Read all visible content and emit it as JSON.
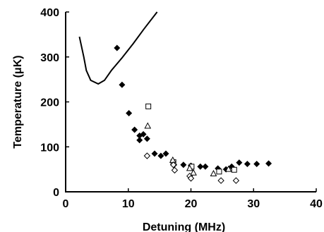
{
  "chart_data": {
    "type": "scatter",
    "title": "",
    "xlabel": "Detuning (MHz)",
    "ylabel": "Temperature  (μK)",
    "xlim": [
      0,
      40
    ],
    "ylim": [
      0,
      400
    ],
    "xticks": [
      0,
      10,
      20,
      30,
      40
    ],
    "yticks": [
      0,
      100,
      200,
      300,
      400
    ],
    "x_tick_labels": [
      "0",
      "10",
      "20",
      "30",
      "40"
    ],
    "y_tick_labels": [
      "0",
      "100",
      "200",
      "300",
      "400"
    ],
    "grid": false,
    "legend": "none",
    "series": [
      {
        "marker": "filled-diamond",
        "color": "#000000",
        "points": [
          [
            8.2,
            320
          ],
          [
            9.0,
            238
          ],
          [
            10.1,
            175
          ],
          [
            11.0,
            138
          ],
          [
            11.8,
            125
          ],
          [
            11.8,
            115
          ],
          [
            12.4,
            128
          ],
          [
            13.0,
            118
          ],
          [
            14.2,
            85
          ],
          [
            15.2,
            80
          ],
          [
            16.0,
            85
          ],
          [
            17.3,
            60
          ],
          [
            18.8,
            60
          ],
          [
            20.0,
            58
          ],
          [
            21.5,
            56
          ],
          [
            22.3,
            56
          ],
          [
            24.3,
            52
          ],
          [
            25.6,
            50
          ],
          [
            26.5,
            56
          ],
          [
            27.7,
            65
          ],
          [
            29.0,
            62
          ],
          [
            30.5,
            62
          ],
          [
            32.4,
            63
          ]
        ]
      },
      {
        "marker": "open-square",
        "color": "#000000",
        "points": [
          [
            13.2,
            190
          ],
          [
            17.2,
            66
          ],
          [
            20.1,
            56
          ],
          [
            24.5,
            45
          ],
          [
            26.9,
            49
          ]
        ]
      },
      {
        "marker": "open-triangle",
        "color": "#000000",
        "points": [
          [
            13.1,
            146
          ],
          [
            17.1,
            70
          ],
          [
            19.8,
            52
          ],
          [
            20.4,
            42
          ],
          [
            23.6,
            40
          ],
          [
            26.0,
            50
          ]
        ]
      },
      {
        "marker": "open-diamond",
        "color": "#000000",
        "points": [
          [
            13.0,
            80
          ],
          [
            17.2,
            60
          ],
          [
            17.4,
            48
          ],
          [
            19.8,
            35
          ],
          [
            20.0,
            30
          ],
          [
            24.8,
            25
          ],
          [
            27.2,
            25
          ]
        ]
      },
      {
        "type": "line",
        "color": "#000000",
        "points": [
          [
            2.2,
            345
          ],
          [
            2.9,
            300
          ],
          [
            3.3,
            270
          ],
          [
            4.0,
            248
          ],
          [
            5.2,
            240
          ],
          [
            6.2,
            248
          ],
          [
            7.3,
            270
          ],
          [
            9.0,
            298
          ],
          [
            10.8,
            330
          ],
          [
            12.5,
            362
          ],
          [
            14.6,
            400
          ]
        ]
      }
    ]
  }
}
